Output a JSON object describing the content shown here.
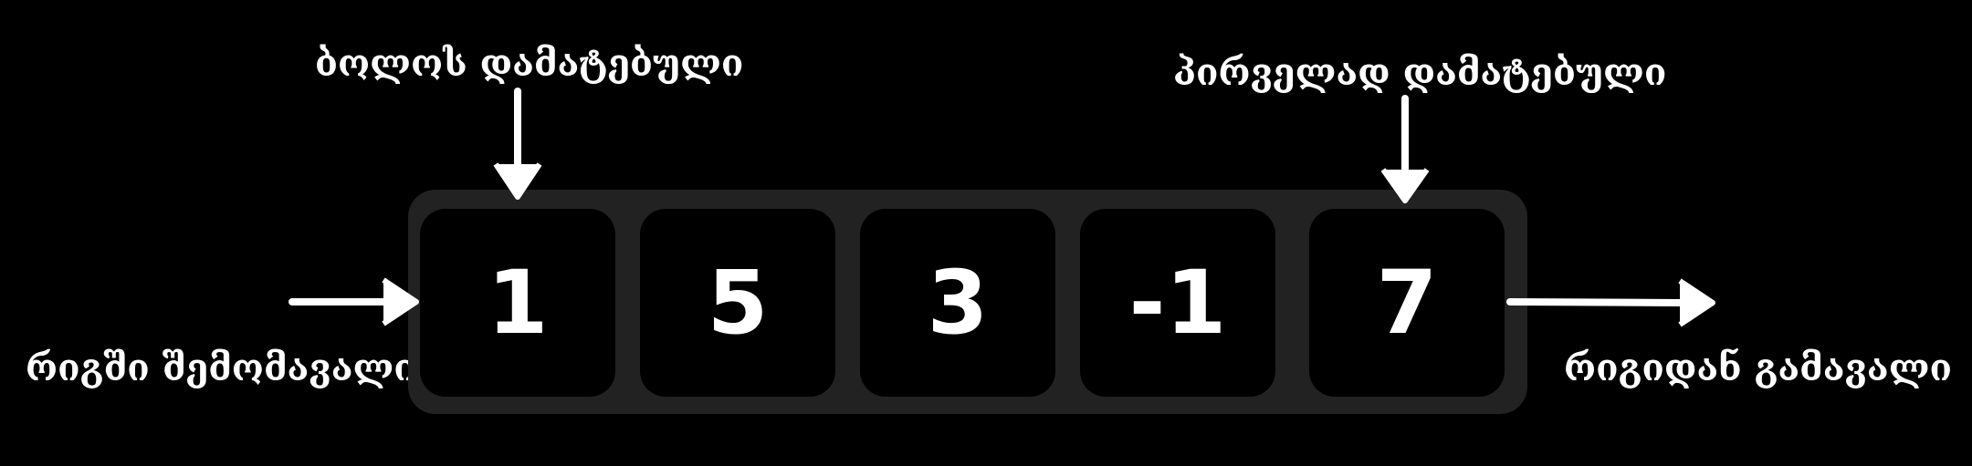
{
  "labels": {
    "last_added": "ბოლოს დამატებული",
    "first_added": "პირველად დამატებული",
    "entering": "რიგში შემომავალი",
    "leaving": "რიგიდან გამავალი"
  },
  "queue": {
    "items": [
      "1",
      "5",
      "3",
      "-1",
      "7"
    ]
  },
  "colors": {
    "background": "#000000",
    "container": "#222222",
    "cell": "#000000",
    "text": "#ffffff"
  }
}
